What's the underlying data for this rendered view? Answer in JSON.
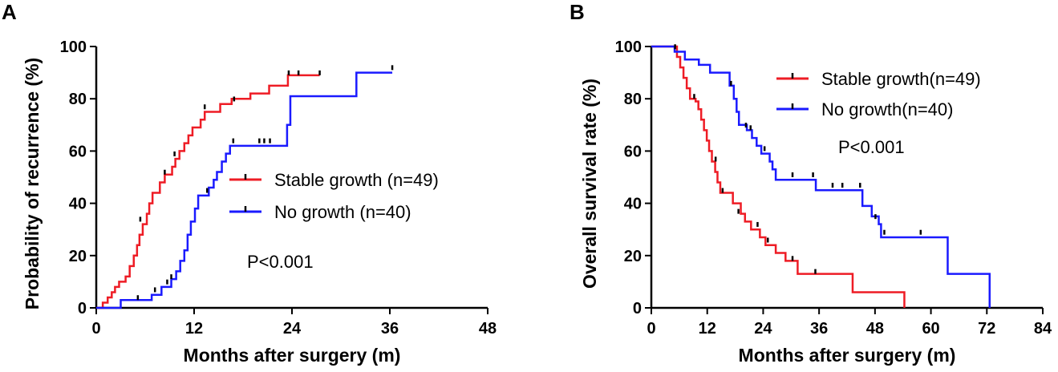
{
  "chart_data": [
    {
      "panel": "A",
      "type": "line",
      "title": "",
      "xlabel": "Months after surgery (m)",
      "ylabel": "Probability of recurrence (%)",
      "xlim": [
        0,
        48
      ],
      "ylim": [
        0,
        100
      ],
      "xticks": [
        "0",
        "12",
        "24",
        "36",
        "48"
      ],
      "yticks": [
        "0",
        "20",
        "40",
        "60",
        "80",
        "100"
      ],
      "annotation": "P<0.001",
      "legend_position": "center-right",
      "series": [
        {
          "name": "Stable growth (n=49)",
          "color": "#ee1c25",
          "steps": [
            [
              0,
              0
            ],
            [
              0.8,
              2
            ],
            [
              1.4,
              4
            ],
            [
              1.9,
              6
            ],
            [
              2.3,
              8
            ],
            [
              2.8,
              10
            ],
            [
              3.6,
              12
            ],
            [
              4.1,
              16
            ],
            [
              4.6,
              20
            ],
            [
              5.0,
              24
            ],
            [
              5.3,
              28
            ],
            [
              5.7,
              32
            ],
            [
              6.2,
              36
            ],
            [
              6.5,
              40
            ],
            [
              6.9,
              44
            ],
            [
              7.8,
              48
            ],
            [
              8.4,
              51
            ],
            [
              9.3,
              54
            ],
            [
              9.7,
              57
            ],
            [
              10.2,
              60
            ],
            [
              10.8,
              63
            ],
            [
              11.3,
              66
            ],
            [
              11.8,
              69
            ],
            [
              12.8,
              72
            ],
            [
              13.3,
              75
            ],
            [
              15.2,
              78
            ],
            [
              16.6,
              80
            ],
            [
              18.9,
              82
            ],
            [
              21.2,
              85
            ],
            [
              23.5,
              89
            ],
            [
              27.4,
              89
            ]
          ],
          "censor": [
            [
              5.4,
              33
            ],
            [
              8.4,
              51
            ],
            [
              9.6,
              58
            ],
            [
              13.3,
              76
            ],
            [
              16.9,
              79
            ],
            [
              23.6,
              89
            ],
            [
              24.8,
              89
            ],
            [
              27.4,
              89
            ]
          ]
        },
        {
          "name": "No growth (n=40)",
          "color": "#1a1aff",
          "steps": [
            [
              0,
              0
            ],
            [
              3.0,
              3
            ],
            [
              6.8,
              5
            ],
            [
              8.0,
              8
            ],
            [
              9.2,
              11
            ],
            [
              9.8,
              14
            ],
            [
              10.3,
              18
            ],
            [
              10.8,
              22
            ],
            [
              11.2,
              28
            ],
            [
              11.6,
              33
            ],
            [
              12.1,
              38
            ],
            [
              12.5,
              43
            ],
            [
              13.8,
              46
            ],
            [
              14.4,
              49
            ],
            [
              14.8,
              52
            ],
            [
              15.4,
              56
            ],
            [
              15.9,
              59
            ],
            [
              16.4,
              62
            ],
            [
              23.4,
              70
            ],
            [
              23.8,
              81
            ],
            [
              31.9,
              90
            ],
            [
              36.3,
              90
            ]
          ],
          "censor": [
            [
              5.1,
              3
            ],
            [
              7.2,
              6
            ],
            [
              8.7,
              9
            ],
            [
              9.2,
              11
            ],
            [
              13.6,
              44
            ],
            [
              16.8,
              63
            ],
            [
              20.0,
              63
            ],
            [
              20.6,
              63
            ],
            [
              21.3,
              63
            ],
            [
              36.3,
              91
            ]
          ]
        }
      ]
    },
    {
      "panel": "B",
      "type": "line",
      "title": "",
      "xlabel": "Months after surgery (m)",
      "ylabel": "Overall survival rate (%)",
      "xlim": [
        0,
        84
      ],
      "ylim": [
        0,
        100
      ],
      "xticks": [
        "0",
        "12",
        "24",
        "36",
        "48",
        "60",
        "72",
        "84"
      ],
      "yticks": [
        "0",
        "20",
        "40",
        "60",
        "80",
        "100"
      ],
      "annotation": "P<0.001",
      "legend_position": "top-right",
      "series": [
        {
          "name": "Stable growth(n=49)",
          "color": "#ee1c25",
          "steps": [
            [
              0,
              100
            ],
            [
              5.5,
              96
            ],
            [
              6.2,
              92
            ],
            [
              6.9,
              88
            ],
            [
              7.6,
              84
            ],
            [
              8.3,
              80
            ],
            [
              9.5,
              79
            ],
            [
              10.1,
              76
            ],
            [
              10.7,
              72
            ],
            [
              11.3,
              68
            ],
            [
              11.9,
              64
            ],
            [
              12.4,
              60
            ],
            [
              13.0,
              56
            ],
            [
              13.7,
              52
            ],
            [
              14.2,
              48
            ],
            [
              14.8,
              44
            ],
            [
              17.5,
              40
            ],
            [
              19.2,
              36
            ],
            [
              20.1,
              33
            ],
            [
              21.4,
              30
            ],
            [
              23.3,
              27
            ],
            [
              24.5,
              24
            ],
            [
              26.7,
              21
            ],
            [
              28.8,
              18
            ],
            [
              31.4,
              13
            ],
            [
              43.2,
              6
            ],
            [
              54.3,
              0
            ]
          ],
          "censor": [
            [
              9.2,
              80
            ],
            [
              13.8,
              56
            ],
            [
              15.3,
              44
            ],
            [
              18.7,
              36
            ],
            [
              22.8,
              31
            ],
            [
              25.0,
              25
            ],
            [
              30.3,
              18
            ],
            [
              35.2,
              13
            ]
          ]
        },
        {
          "name": "No growth(n=40)",
          "color": "#1a1aff",
          "steps": [
            [
              0,
              100
            ],
            [
              5.0,
              98
            ],
            [
              7.2,
              95
            ],
            [
              10.2,
              93
            ],
            [
              12.6,
              90
            ],
            [
              16.8,
              85
            ],
            [
              17.7,
              80
            ],
            [
              18.3,
              75
            ],
            [
              18.8,
              70
            ],
            [
              20.5,
              68
            ],
            [
              21.6,
              65
            ],
            [
              22.6,
              62
            ],
            [
              23.6,
              59
            ],
            [
              25.4,
              56
            ],
            [
              26.0,
              53
            ],
            [
              26.7,
              49
            ],
            [
              35.3,
              45
            ],
            [
              45.3,
              39
            ],
            [
              47.3,
              35
            ],
            [
              48.8,
              32
            ],
            [
              49.3,
              27
            ],
            [
              63.6,
              13
            ],
            [
              72.6,
              0
            ]
          ],
          "censor": [
            [
              5.1,
              99
            ],
            [
              17.1,
              85
            ],
            [
              20.3,
              69
            ],
            [
              21.3,
              68
            ],
            [
              24.3,
              60
            ],
            [
              30.3,
              50
            ],
            [
              34.7,
              50
            ],
            [
              38.9,
              46
            ],
            [
              41.0,
              46
            ],
            [
              44.8,
              46
            ],
            [
              48.1,
              34
            ],
            [
              50.0,
              28
            ],
            [
              57.8,
              28
            ]
          ]
        }
      ]
    }
  ]
}
